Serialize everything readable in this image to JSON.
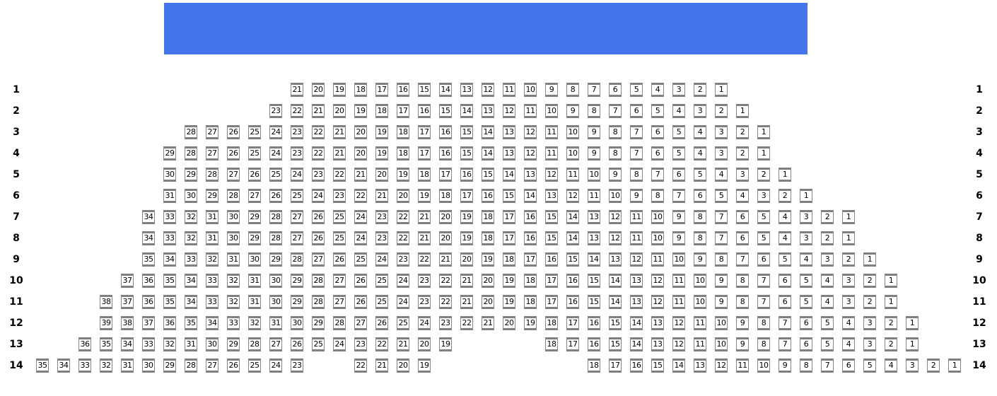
{
  "screen": {
    "color": "#4475ed"
  },
  "seat_style": {
    "border": "#808080",
    "text": "#000000"
  },
  "rows": [
    {
      "label": "1",
      "segments": [
        {
          "from": 21,
          "to": 1
        }
      ]
    },
    {
      "label": "2",
      "segments": [
        {
          "from": 23,
          "to": 1
        }
      ]
    },
    {
      "label": "3",
      "segments": [
        {
          "from": 28,
          "to": 1
        }
      ]
    },
    {
      "label": "4",
      "segments": [
        {
          "from": 29,
          "to": 1
        }
      ]
    },
    {
      "label": "5",
      "segments": [
        {
          "from": 30,
          "to": 1
        }
      ]
    },
    {
      "label": "6",
      "segments": [
        {
          "from": 31,
          "to": 1
        }
      ]
    },
    {
      "label": "7",
      "segments": [
        {
          "from": 34,
          "to": 1
        }
      ]
    },
    {
      "label": "8",
      "segments": [
        {
          "from": 34,
          "to": 1
        }
      ]
    },
    {
      "label": "9",
      "segments": [
        {
          "from": 35,
          "to": 1
        }
      ]
    },
    {
      "label": "10",
      "segments": [
        {
          "from": 37,
          "to": 1
        }
      ]
    },
    {
      "label": "11",
      "segments": [
        {
          "from": 38,
          "to": 1
        }
      ]
    },
    {
      "label": "12",
      "segments": [
        {
          "from": 39,
          "to": 1
        }
      ]
    },
    {
      "label": "13",
      "segments": [
        {
          "from": 36,
          "to": 19
        },
        {
          "from": 18,
          "to": 1
        }
      ]
    },
    {
      "label": "14",
      "segments": [
        {
          "from": 35,
          "to": 23
        },
        {
          "from": 22,
          "to": 19
        },
        {
          "from": 18,
          "to": 1
        }
      ]
    }
  ]
}
